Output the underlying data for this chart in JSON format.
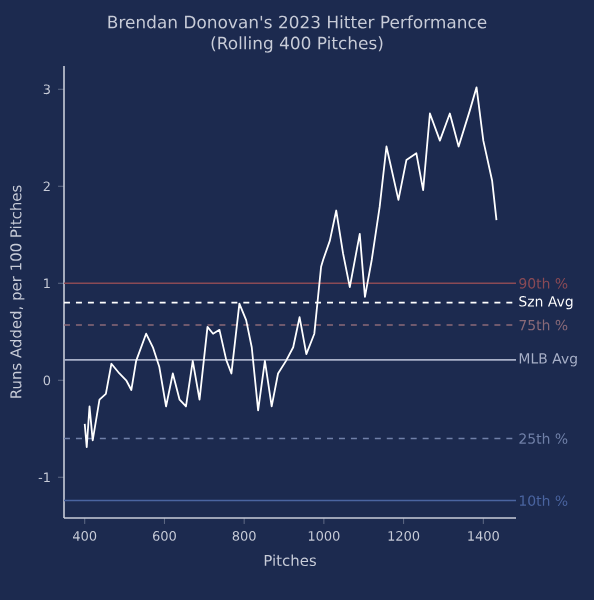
{
  "chart_data": {
    "type": "line",
    "title": "Brendan Donovan's 2023 Hitter Performance",
    "subtitle": "(Rolling 400 Pitches)",
    "xlabel": "Pitches",
    "ylabel": "Runs Added, per 100 Pitches",
    "x": [
      400,
      405,
      412,
      420,
      437,
      453,
      467,
      487,
      504,
      517,
      529,
      554,
      571,
      587,
      604,
      621,
      638,
      654,
      671,
      688,
      708,
      722,
      738,
      755,
      768,
      788,
      805,
      819,
      835,
      852,
      869,
      885,
      905,
      923,
      939,
      956,
      976,
      993,
      998,
      1015,
      1031,
      1048,
      1065,
      1090,
      1103,
      1120,
      1140,
      1157,
      1187,
      1207,
      1232,
      1249,
      1266,
      1291,
      1316,
      1338,
      1366,
      1383,
      1400,
      1422,
      1433
    ],
    "series": [
      {
        "color": "#ffffff",
        "values": [
          -0.45,
          -0.69,
          -0.27,
          -0.62,
          -0.2,
          -0.14,
          0.17,
          0.07,
          0,
          -0.1,
          0.2,
          0.48,
          0.34,
          0.14,
          -0.27,
          0.07,
          -0.2,
          -0.27,
          0.2,
          -0.2,
          0.55,
          0.48,
          0.52,
          0.21,
          0.07,
          0.79,
          0.62,
          0.34,
          -0.31,
          0.2,
          -0.27,
          0.07,
          0.2,
          0.34,
          0.65,
          0.27,
          0.48,
          1.17,
          1.24,
          1.44,
          1.75,
          1.31,
          0.96,
          1.51,
          0.86,
          1.24,
          1.79,
          2.41,
          1.86,
          2.27,
          2.34,
          1.96,
          2.75,
          2.47,
          2.75,
          2.41,
          2.78,
          3.02,
          2.47,
          2.06,
          1.65
        ]
      }
    ],
    "xlim": [
      348,
      1482
    ],
    "ylim": [
      -1.42,
      3.24
    ],
    "xticks": [
      400,
      600,
      800,
      1000,
      1200,
      1400
    ],
    "yticks": [
      -1,
      0,
      1,
      2,
      3
    ],
    "ref_lines": [
      {
        "axis": "y",
        "value": 1.0,
        "label": "90th %",
        "color": "#8a4a55",
        "line_style": "solid"
      },
      {
        "axis": "y",
        "value": 0.8,
        "label": "Szn Avg",
        "color": "#ffffff",
        "line_style": "dashed"
      },
      {
        "axis": "y",
        "value": 0.57,
        "label": "75th %",
        "color": "#8a6a78",
        "line_style": "dashed"
      },
      {
        "axis": "y",
        "value": 0.21,
        "label": "MLB Avg",
        "color": "#a8b0c8",
        "line_style": "solid"
      },
      {
        "axis": "y",
        "value": -0.6,
        "label": "25th %",
        "color": "#7080a8",
        "line_style": "dashed"
      },
      {
        "axis": "y",
        "value": -1.24,
        "label": "10th %",
        "color": "#4a64a0",
        "line_style": "solid"
      }
    ],
    "grid": false,
    "marker": "none",
    "line_style": "solid"
  }
}
